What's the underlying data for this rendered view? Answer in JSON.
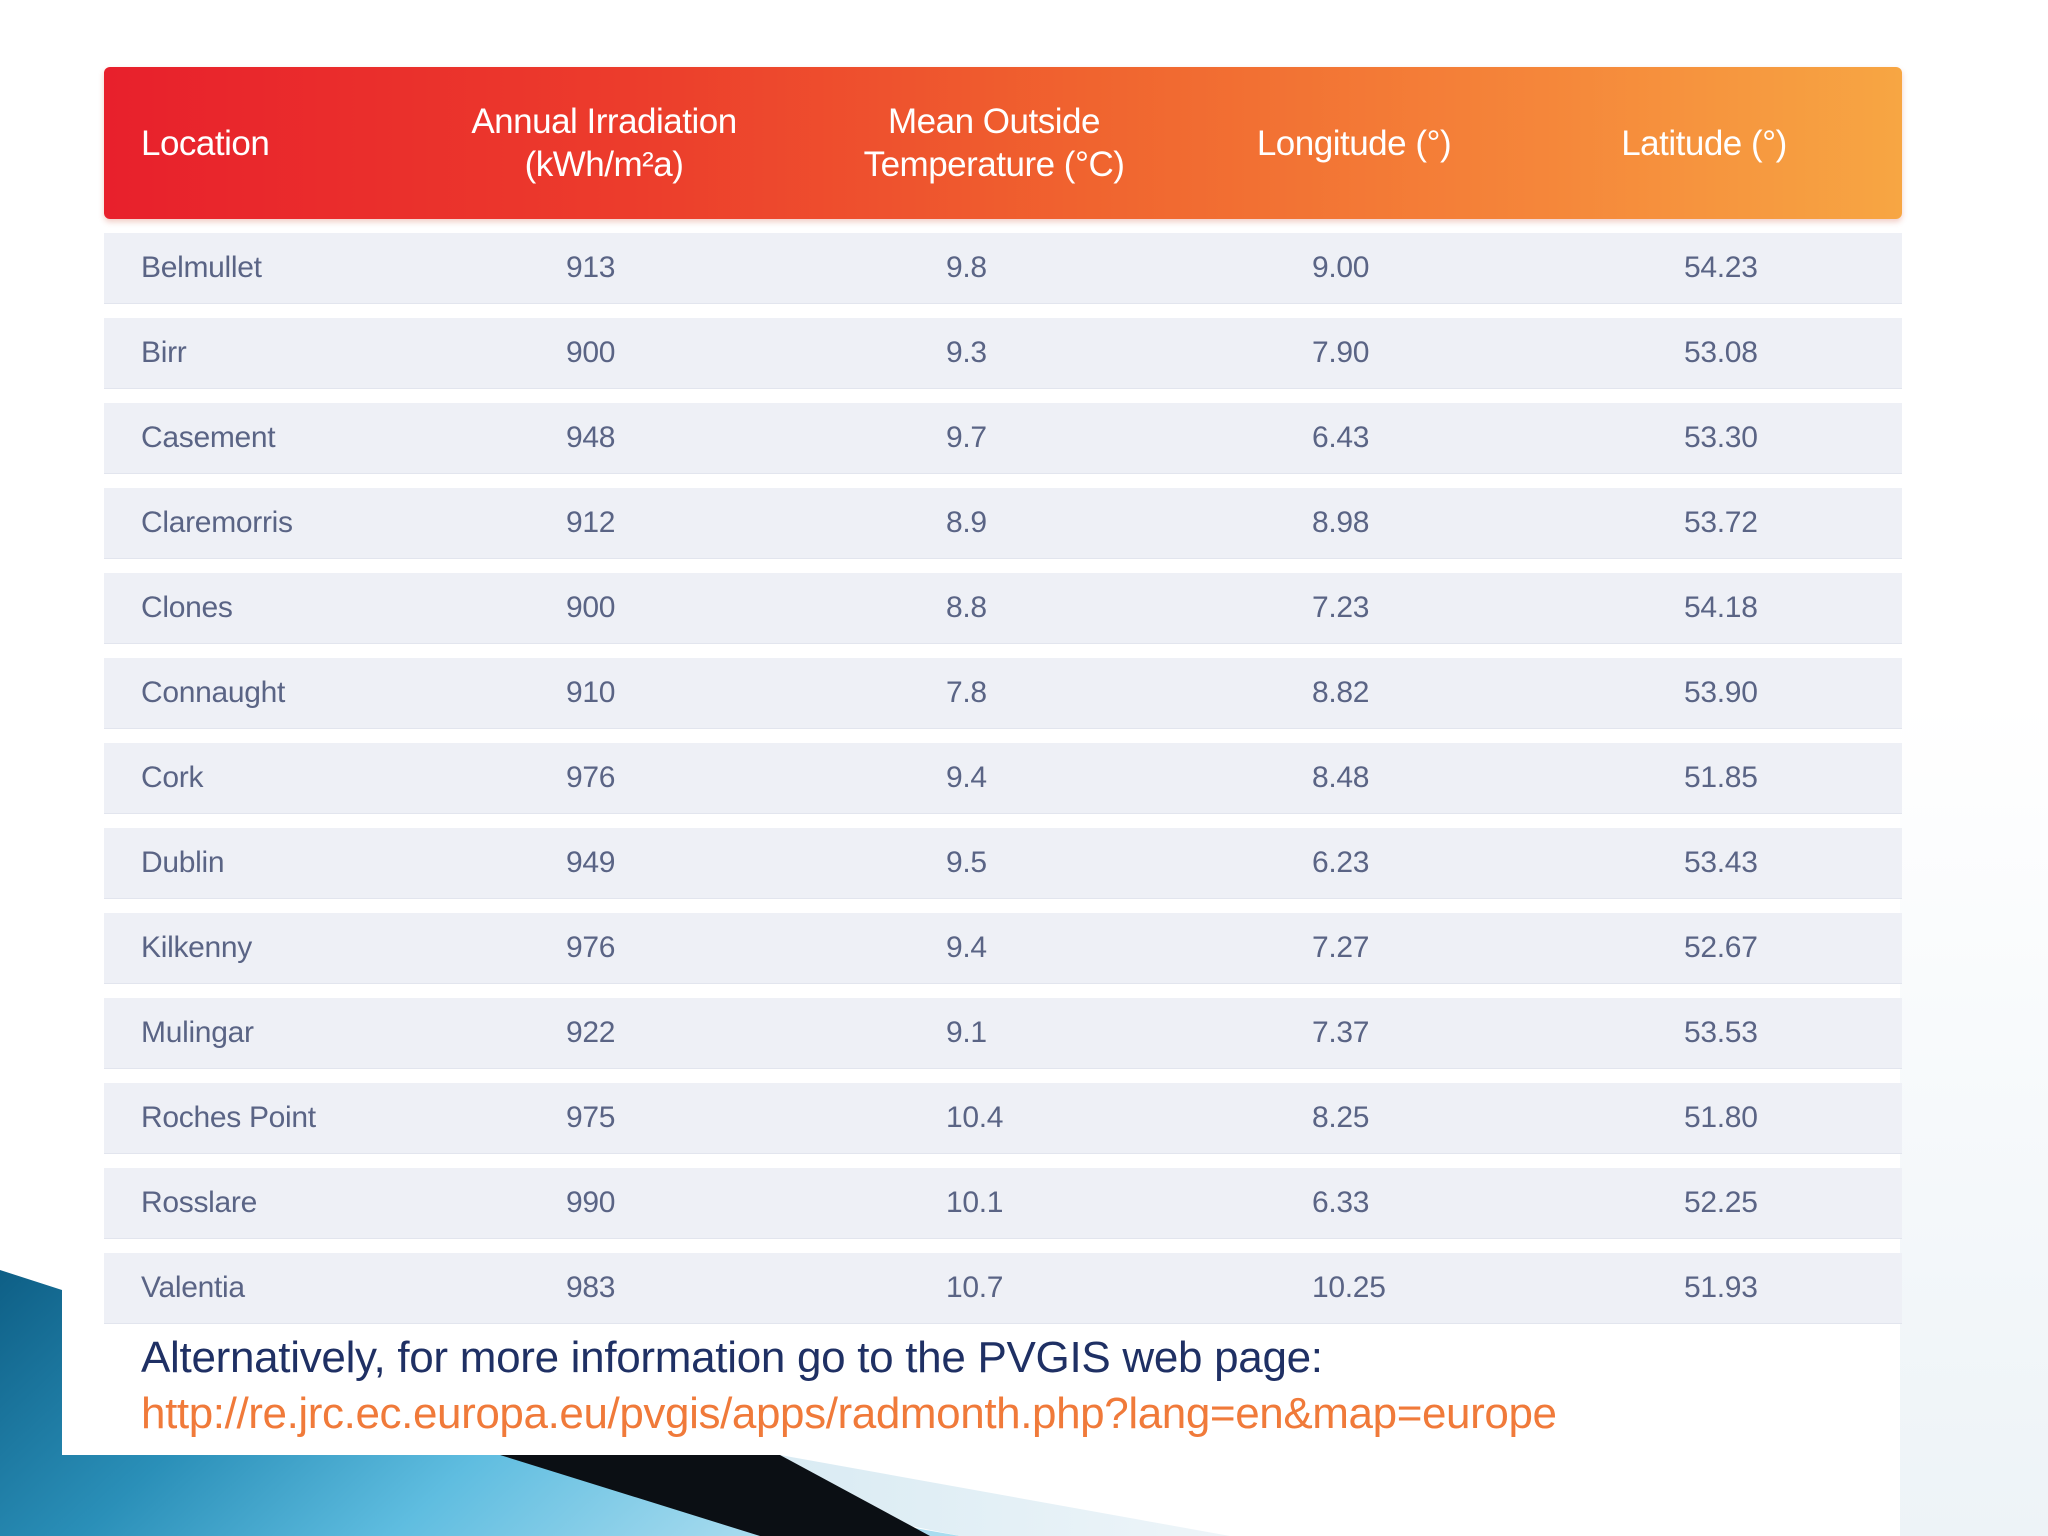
{
  "table": {
    "headers": {
      "location": "Location",
      "irradiation_line1": "Annual Irradiation",
      "irradiation_line2": "(kWh/m²a)",
      "temperature_line1": "Mean Outside",
      "temperature_line2": "Temperature (°C)",
      "longitude": "Longitude (°)",
      "latitude": "Latitude (°)"
    },
    "rows": [
      {
        "location": "Belmullet",
        "irradiation": "913",
        "temperature": "9.8",
        "longitude": "9.00",
        "latitude": "54.23"
      },
      {
        "location": "Birr",
        "irradiation": "900",
        "temperature": "9.3",
        "longitude": "7.90",
        "latitude": "53.08"
      },
      {
        "location": "Casement",
        "irradiation": "948",
        "temperature": "9.7",
        "longitude": "6.43",
        "latitude": "53.30"
      },
      {
        "location": "Claremorris",
        "irradiation": "912",
        "temperature": "8.9",
        "longitude": "8.98",
        "latitude": "53.72"
      },
      {
        "location": "Clones",
        "irradiation": "900",
        "temperature": "8.8",
        "longitude": "7.23",
        "latitude": "54.18"
      },
      {
        "location": "Connaught",
        "irradiation": "910",
        "temperature": "7.8",
        "longitude": "8.82",
        "latitude": "53.90"
      },
      {
        "location": "Cork",
        "irradiation": "976",
        "temperature": "9.4",
        "longitude": "8.48",
        "latitude": "51.85"
      },
      {
        "location": "Dublin",
        "irradiation": "949",
        "temperature": "9.5",
        "longitude": "6.23",
        "latitude": "53.43"
      },
      {
        "location": "Kilkenny",
        "irradiation": "976",
        "temperature": "9.4",
        "longitude": "7.27",
        "latitude": "52.67"
      },
      {
        "location": "Mulingar",
        "irradiation": "922",
        "temperature": "9.1",
        "longitude": "7.37",
        "latitude": "53.53"
      },
      {
        "location": "Roches Point",
        "irradiation": "975",
        "temperature": "10.4",
        "longitude": "8.25",
        "latitude": "51.80"
      },
      {
        "location": "Rosslare",
        "irradiation": "990",
        "temperature": "10.1",
        "longitude": "6.33",
        "latitude": "52.25"
      },
      {
        "location": "Valentia",
        "irradiation": "983",
        "temperature": "10.7",
        "longitude": "10.25",
        "latitude": "51.93"
      }
    ]
  },
  "footer": {
    "text": "Alternatively, for more information go to the PVGIS web page:",
    "link": "http://re.jrc.ec.europa.eu/pvgis/apps/radmonth.php?lang=en&map=europe"
  },
  "colors": {
    "header_start": "#e8202c",
    "header_end": "#f7a643",
    "row_bg": "#eef0f6",
    "row_text": "#5a6485",
    "footer_text": "#1f3064",
    "link": "#f07a3a",
    "decor_blue": "#2a8fb8"
  }
}
